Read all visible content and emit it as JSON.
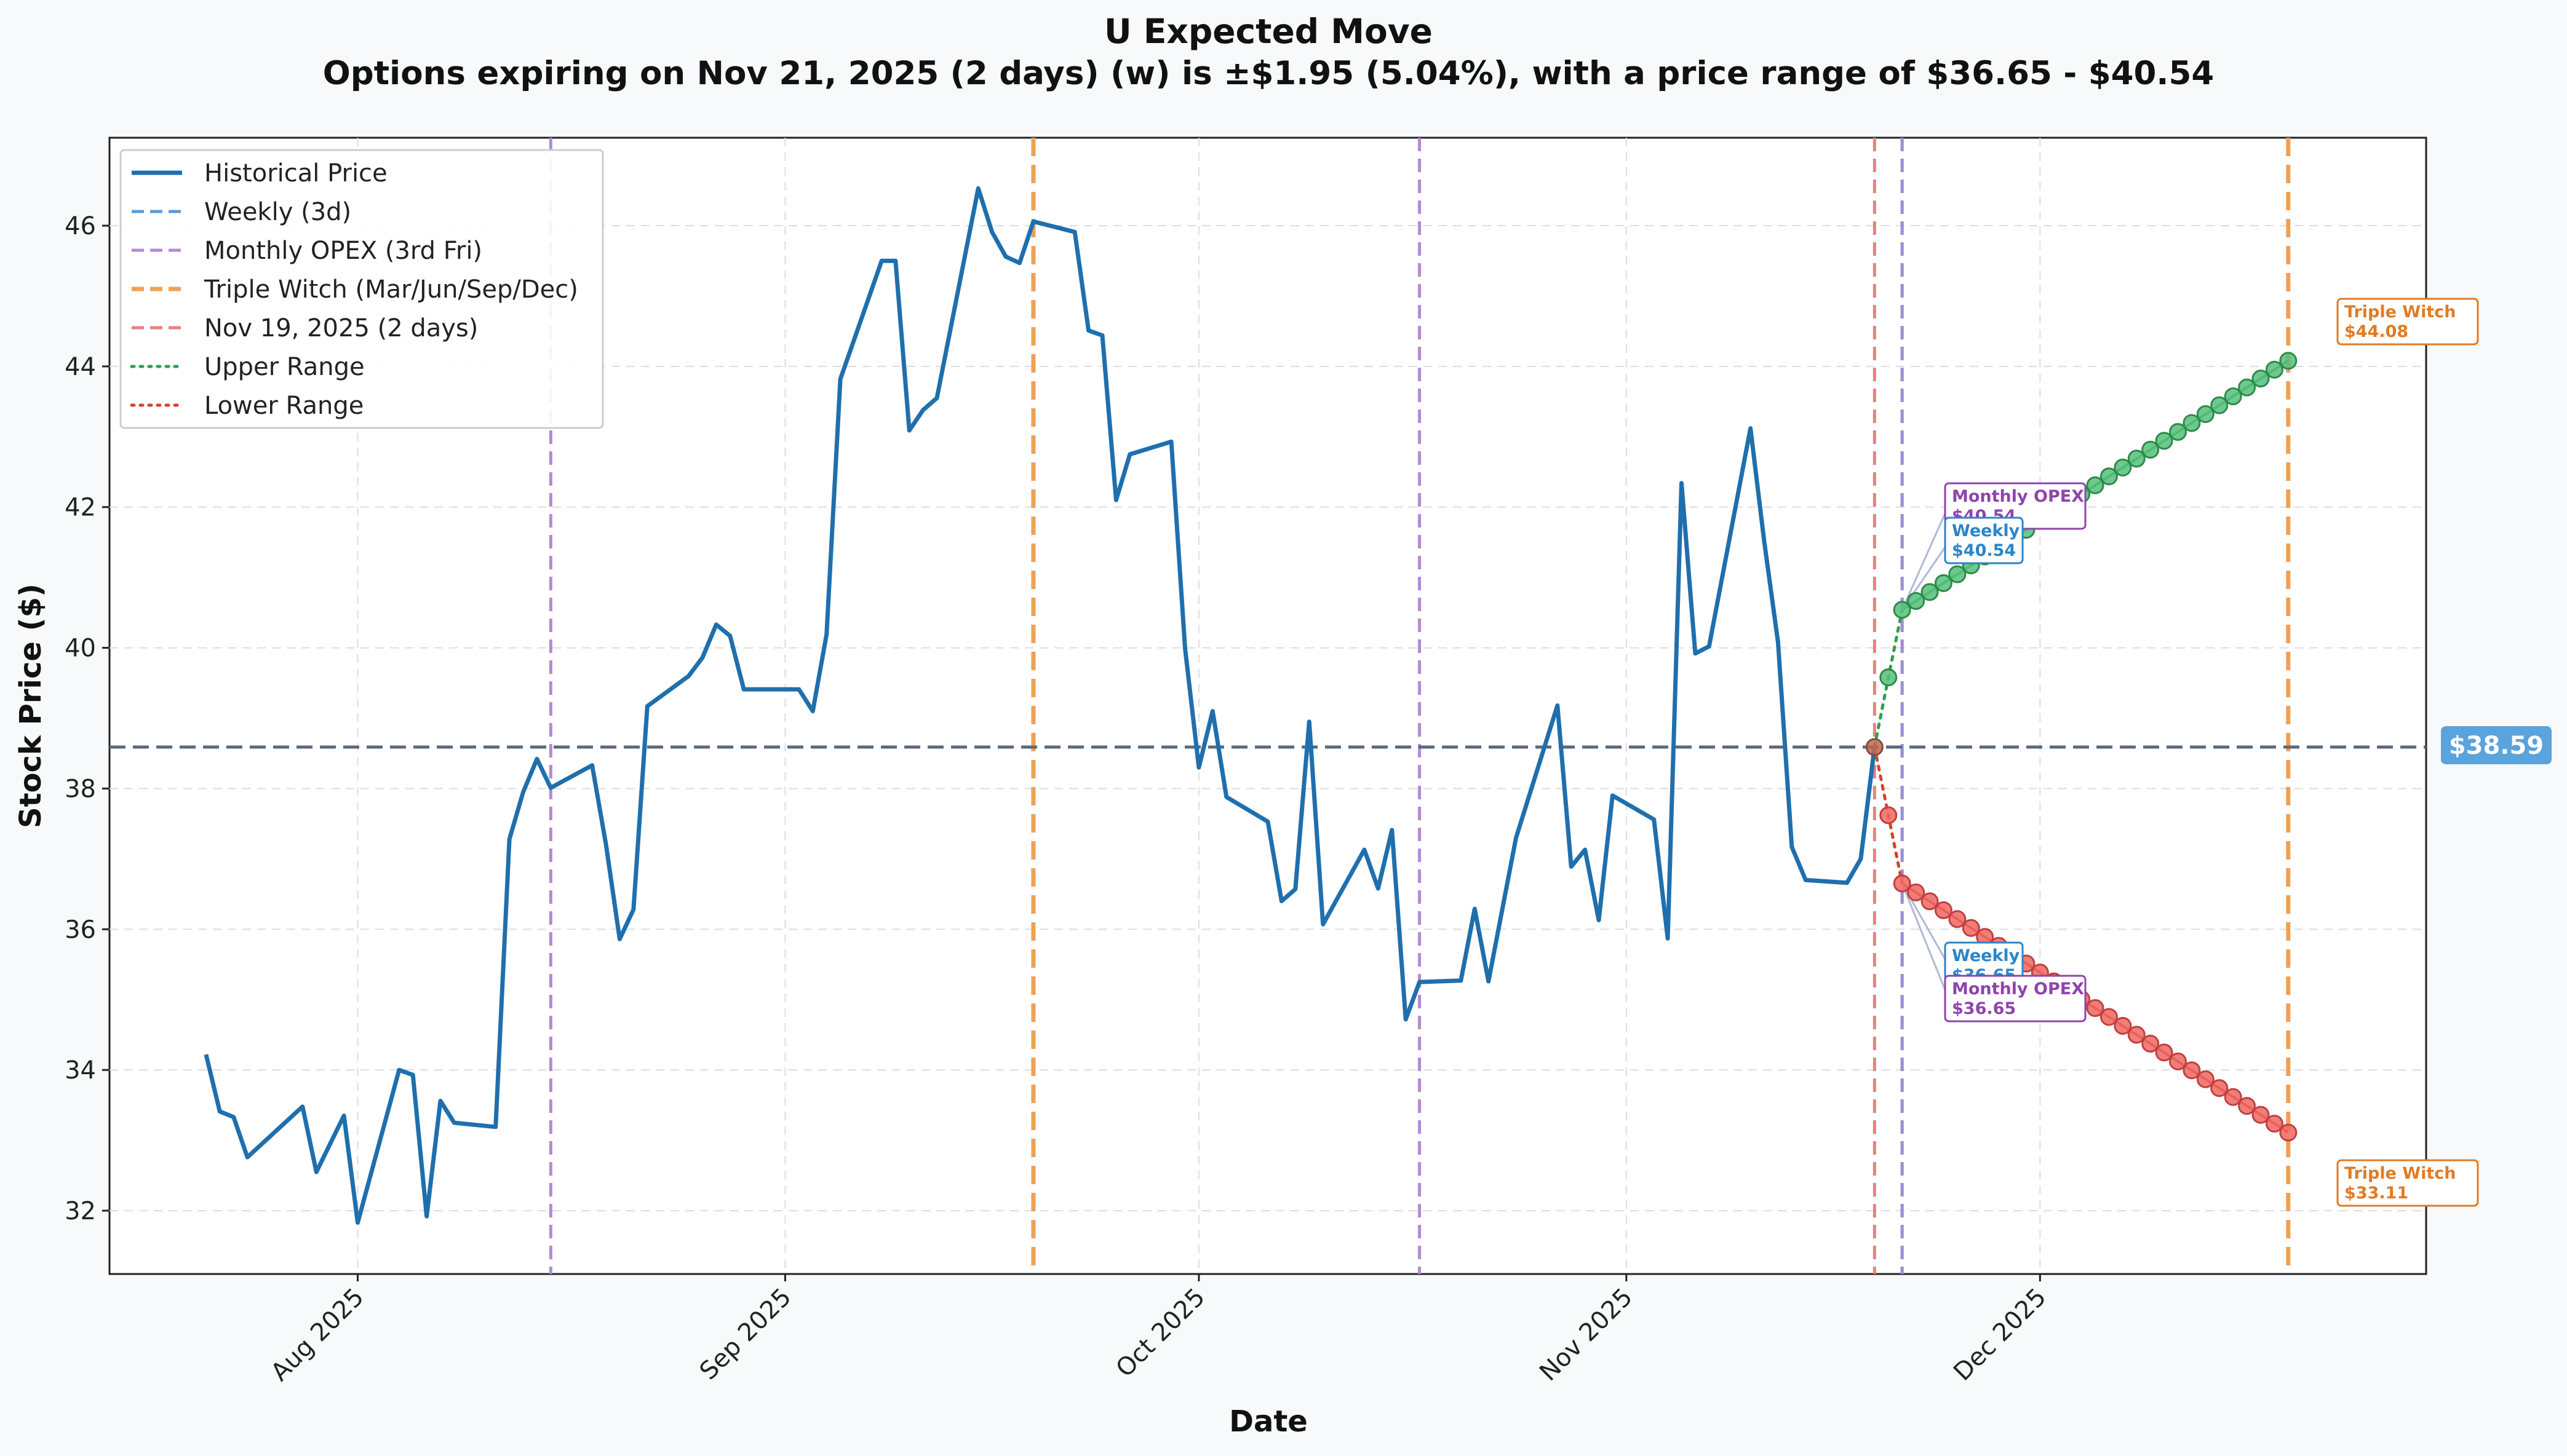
{
  "chart_data": {
    "type": "line",
    "title": "U Expected Move",
    "subtitle": "Options expiring on Nov 21, 2025 (2 days) (w) is ±$1.95 (5.04%), with a price range of $36.65 - $40.54",
    "xlabel": "Date",
    "ylabel": "Stock Price ($)",
    "ylim": [
      31.1,
      47.25
    ],
    "yticks": [
      32,
      34,
      36,
      38,
      40,
      42,
      44,
      46
    ],
    "xlim": [
      "2025-07-14",
      "2025-12-29"
    ],
    "xticks": [
      {
        "date": "2025-08-01",
        "label": "Aug 2025"
      },
      {
        "date": "2025-09-01",
        "label": "Sep 2025"
      },
      {
        "date": "2025-10-01",
        "label": "Oct 2025"
      },
      {
        "date": "2025-11-01",
        "label": "Nov 2025"
      },
      {
        "date": "2025-12-01",
        "label": "Dec 2025"
      }
    ],
    "grid": true,
    "legend_position": "top-left",
    "current_price": 38.59,
    "current_price_label": "$38.59",
    "colors": {
      "historical": "#1f6fad",
      "weekly": "#5b9bd5",
      "monthly": "#b58ad0",
      "triple": "#f0a055",
      "today": "#e88080",
      "upper": "#2e9e4f",
      "lower": "#d9402f",
      "upper_marker": "#55c07a",
      "lower_marker": "#ee6660",
      "current": "#5a6a7d",
      "current_badge": "#5aa3dc"
    },
    "legend": [
      {
        "label": "Historical Price",
        "style": "solid",
        "color": "#1f6fad"
      },
      {
        "label": "Weekly (3d)",
        "style": "dashed",
        "color": "#5b9bd5"
      },
      {
        "label": "Monthly OPEX (3rd Fri)",
        "style": "dashed",
        "color": "#b58ad0"
      },
      {
        "label": "Triple Witch (Mar/Jun/Sep/Dec)",
        "style": "dashed",
        "color": "#f0a055"
      },
      {
        "label": "Nov 19, 2025 (2 days)",
        "style": "dashed",
        "color": "#e88080"
      },
      {
        "label": "Upper Range",
        "style": "dotted",
        "color": "#2e9e4f"
      },
      {
        "label": "Lower Range",
        "style": "dotted",
        "color": "#d9402f"
      }
    ],
    "vlines": [
      {
        "date": "2025-08-15",
        "kind": "monthly"
      },
      {
        "date": "2025-09-19",
        "kind": "triple"
      },
      {
        "date": "2025-10-17",
        "kind": "monthly"
      },
      {
        "date": "2025-11-19",
        "kind": "today"
      },
      {
        "date": "2025-11-21",
        "kind": "weekly"
      },
      {
        "date": "2025-11-21",
        "kind": "monthly"
      },
      {
        "date": "2025-12-19",
        "kind": "triple"
      }
    ],
    "series": [
      {
        "name": "Historical Price",
        "points": [
          [
            "2025-07-21",
            34.22
          ],
          [
            "2025-07-22",
            33.41
          ],
          [
            "2025-07-23",
            33.33
          ],
          [
            "2025-07-24",
            32.76
          ],
          [
            "2025-07-28",
            33.48
          ],
          [
            "2025-07-29",
            32.55
          ],
          [
            "2025-07-31",
            33.35
          ],
          [
            "2025-08-01",
            31.83
          ],
          [
            "2025-08-04",
            34.0
          ],
          [
            "2025-08-05",
            33.93
          ],
          [
            "2025-08-06",
            31.92
          ],
          [
            "2025-08-07",
            33.56
          ],
          [
            "2025-08-08",
            33.25
          ],
          [
            "2025-08-11",
            33.19
          ],
          [
            "2025-08-12",
            37.28
          ],
          [
            "2025-08-13",
            37.95
          ],
          [
            "2025-08-14",
            38.42
          ],
          [
            "2025-08-15",
            38.01
          ],
          [
            "2025-08-18",
            38.33
          ],
          [
            "2025-08-19",
            37.21
          ],
          [
            "2025-08-20",
            35.86
          ],
          [
            "2025-08-21",
            36.28
          ],
          [
            "2025-08-22",
            39.17
          ],
          [
            "2025-08-25",
            39.6
          ],
          [
            "2025-08-26",
            39.86
          ],
          [
            "2025-08-27",
            40.33
          ],
          [
            "2025-08-28",
            40.17
          ],
          [
            "2025-08-29",
            39.41
          ],
          [
            "2025-09-02",
            39.41
          ],
          [
            "2025-09-03",
            39.1
          ],
          [
            "2025-09-04",
            40.19
          ],
          [
            "2025-09-05",
            43.82
          ],
          [
            "2025-09-08",
            45.5
          ],
          [
            "2025-09-09",
            45.5
          ],
          [
            "2025-09-10",
            43.09
          ],
          [
            "2025-09-11",
            43.38
          ],
          [
            "2025-09-12",
            43.55
          ],
          [
            "2025-09-15",
            46.53
          ],
          [
            "2025-09-16",
            45.91
          ],
          [
            "2025-09-17",
            45.56
          ],
          [
            "2025-09-18",
            45.47
          ],
          [
            "2025-09-19",
            46.06
          ],
          [
            "2025-09-22",
            45.91
          ],
          [
            "2025-09-23",
            44.51
          ],
          [
            "2025-09-24",
            44.44
          ],
          [
            "2025-09-25",
            42.1
          ],
          [
            "2025-09-26",
            42.75
          ],
          [
            "2025-09-29",
            42.93
          ],
          [
            "2025-09-30",
            39.99
          ],
          [
            "2025-10-01",
            38.3
          ],
          [
            "2025-10-02",
            39.1
          ],
          [
            "2025-10-03",
            37.88
          ],
          [
            "2025-10-06",
            37.53
          ],
          [
            "2025-10-07",
            36.4
          ],
          [
            "2025-10-08",
            36.57
          ],
          [
            "2025-10-09",
            38.95
          ],
          [
            "2025-10-10",
            36.07
          ],
          [
            "2025-10-13",
            37.13
          ],
          [
            "2025-10-14",
            36.58
          ],
          [
            "2025-10-15",
            37.41
          ],
          [
            "2025-10-16",
            34.72
          ],
          [
            "2025-10-17",
            35.25
          ],
          [
            "2025-10-20",
            35.27
          ],
          [
            "2025-10-21",
            36.29
          ],
          [
            "2025-10-22",
            35.26
          ],
          [
            "2025-10-24",
            37.3
          ],
          [
            "2025-10-27",
            39.18
          ],
          [
            "2025-10-28",
            36.89
          ],
          [
            "2025-10-29",
            37.13
          ],
          [
            "2025-10-30",
            36.13
          ],
          [
            "2025-10-31",
            37.9
          ],
          [
            "2025-11-03",
            37.56
          ],
          [
            "2025-11-04",
            35.87
          ],
          [
            "2025-11-05",
            42.34
          ],
          [
            "2025-11-06",
            39.92
          ],
          [
            "2025-11-07",
            40.02
          ],
          [
            "2025-11-10",
            43.12
          ],
          [
            "2025-11-11",
            41.51
          ],
          [
            "2025-11-12",
            40.08
          ],
          [
            "2025-11-13",
            37.17
          ],
          [
            "2025-11-14",
            36.7
          ],
          [
            "2025-11-17",
            36.66
          ],
          [
            "2025-11-18",
            37.0
          ],
          [
            "2025-11-19",
            38.59
          ]
        ]
      },
      {
        "name": "Upper Range",
        "points": [
          [
            "2025-11-19",
            38.59
          ],
          [
            "2025-11-20",
            39.58
          ],
          [
            "2025-11-21",
            40.54
          ],
          [
            "2025-12-19",
            44.08
          ]
        ]
      },
      {
        "name": "Lower Range",
        "points": [
          [
            "2025-11-19",
            38.59
          ],
          [
            "2025-11-20",
            37.62
          ],
          [
            "2025-11-21",
            36.65
          ],
          [
            "2025-12-19",
            33.11
          ]
        ]
      }
    ],
    "annotations": [
      {
        "line1": "Monthly OPEX",
        "line2": "$40.54",
        "kind": "monthly"
      },
      {
        "line1": "Weekly",
        "line2": "$40.54",
        "kind": "weekly"
      },
      {
        "line1": "Weekly",
        "line2": "$36.65",
        "kind": "weekly"
      },
      {
        "line1": "Monthly OPEX",
        "line2": "$36.65",
        "kind": "monthly"
      },
      {
        "line1": "Triple Witch",
        "line2": "$44.08",
        "kind": "triple"
      },
      {
        "line1": "Triple Witch",
        "line2": "$33.11",
        "kind": "triple"
      }
    ]
  }
}
